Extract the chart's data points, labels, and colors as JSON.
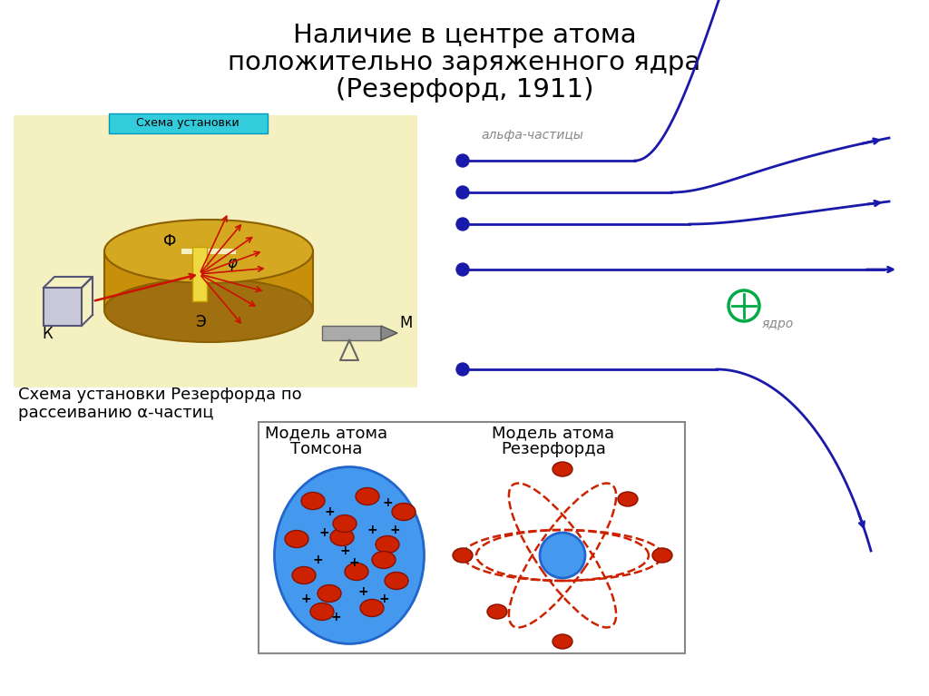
{
  "title_line1": "Наличие в центре атома",
  "title_line2": "положительно заряженного ядра",
  "title_line3": "(Резерфорд, 1911)",
  "bg_color": "#ffffff",
  "left_panel_bg": "#f5f0c0",
  "blue_color": "#1a1aaa",
  "green_color": "#00aa44",
  "red_color": "#cc1100",
  "atom_blue": "#4499ee",
  "caption_left1": "Схема установки Резерфорда по",
  "caption_left2": "рассеиванию α-частиц",
  "alfa_label": "альфа-частицы",
  "yadro_label": "ядро",
  "model_title1": "Модель атома",
  "model_subtitle1": "Томсона",
  "model_title2": "Модель атома",
  "model_subtitle2": "Резерфорда"
}
